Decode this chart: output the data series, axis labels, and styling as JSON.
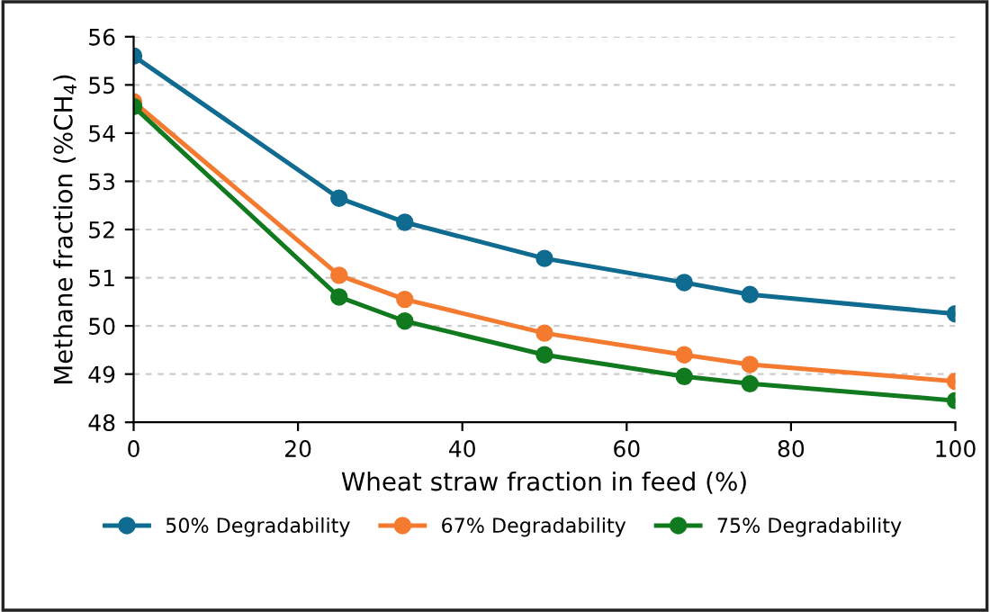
{
  "chart_data": {
    "type": "line",
    "xlabel": "Wheat straw fraction in feed (%)",
    "ylabel": "Methane fraction (%CH$_{4}$)",
    "x": [
      0,
      25,
      33,
      50,
      67,
      75,
      100
    ],
    "series": [
      {
        "name": "50% Degradability",
        "color": "#0f6b8f",
        "values": [
          55.6,
          52.65,
          52.15,
          51.4,
          50.9,
          50.65,
          50.25
        ]
      },
      {
        "name": "67% Degradability",
        "color": "#f47a30",
        "values": [
          54.65,
          51.05,
          50.55,
          49.85,
          49.4,
          49.2,
          48.85
        ]
      },
      {
        "name": "75% Degradability",
        "color": "#117a1f",
        "values": [
          54.55,
          50.6,
          50.1,
          49.4,
          48.95,
          48.8,
          48.45
        ]
      }
    ],
    "xlim": [
      0,
      100
    ],
    "xticks": [
      0,
      20,
      40,
      60,
      80,
      100
    ],
    "ylim": [
      48,
      56
    ],
    "yticks": [
      48,
      49,
      50,
      51,
      52,
      53,
      54,
      55,
      56
    ],
    "grid": "y",
    "legend": "bottom",
    "marker": "circle",
    "line_style": "solid"
  }
}
